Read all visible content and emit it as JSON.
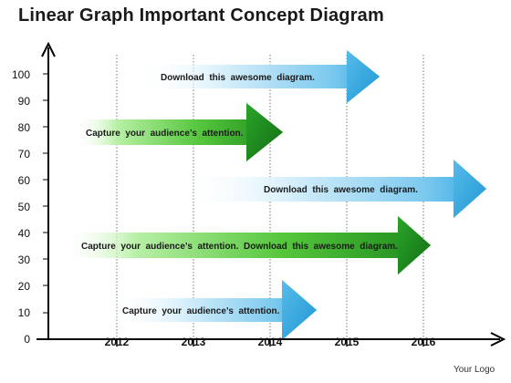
{
  "title": "Linear Graph Important Concept Diagram",
  "logo_text": "Your Logo",
  "y_ticks": [
    "0",
    "10",
    "20",
    "30",
    "40",
    "50",
    "60",
    "70",
    "80",
    "90",
    "100"
  ],
  "x_ticks": [
    "2012",
    "2013",
    "2014",
    "2015",
    "2016"
  ],
  "arrows": [
    {
      "text": "Download  this  awesome  diagram.",
      "color": "blue"
    },
    {
      "text": "Capture  your  audience’s  attention.",
      "color": "green"
    },
    {
      "text": "Download  this  awesome  diagram.",
      "color": "blue"
    },
    {
      "text": "Capture  your  audience’s  attention.  Download  this  awesome  diagram.",
      "color": "green"
    },
    {
      "text": "Capture  your  audience’s  attention.",
      "color": "blue"
    }
  ],
  "colors": {
    "blue_arrow": "#2fa8e0",
    "green_arrow": "#1e8a1e",
    "axis": "#000000",
    "gridline": "#555555"
  }
}
